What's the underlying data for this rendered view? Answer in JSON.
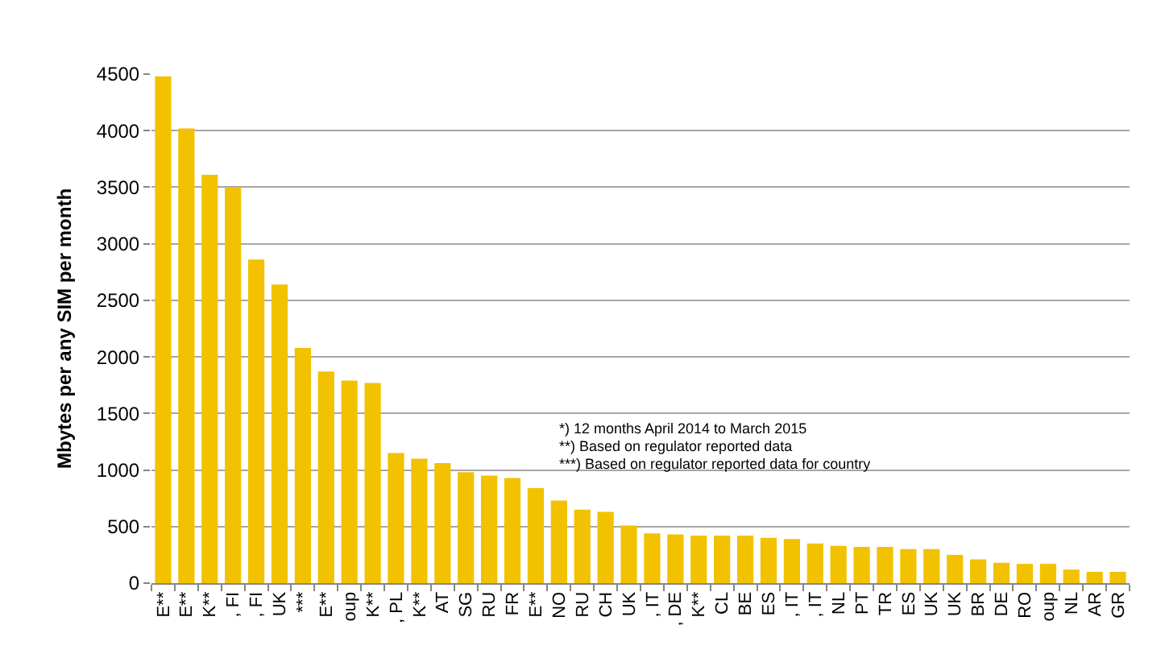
{
  "chart_data": {
    "type": "bar",
    "ylabel": "Mbytes per any SIM per month",
    "categories": [
      "E**",
      "E**",
      "K**",
      ", FI",
      ", FI",
      "UK",
      "***",
      "E**",
      "oup",
      "K**",
      ", PL",
      "K**",
      "AT",
      "SG",
      "RU",
      "FR",
      "E**",
      "NO",
      "RU",
      "CH",
      "UK",
      ", IT",
      ", DE",
      "K**",
      "CL",
      "BE",
      "ES",
      ", IT",
      ", IT",
      "NL",
      "PT",
      "TR",
      "ES",
      "UK",
      "UK",
      "BR",
      "DE",
      "RO",
      "oup",
      "NL",
      "AR",
      "GR"
    ],
    "values": [
      4480,
      4020,
      3610,
      3500,
      2860,
      2640,
      2080,
      1870,
      1790,
      1770,
      1150,
      1100,
      1060,
      980,
      950,
      930,
      840,
      730,
      650,
      630,
      510,
      440,
      430,
      420,
      420,
      420,
      400,
      390,
      350,
      330,
      320,
      320,
      300,
      300,
      250,
      210,
      180,
      170,
      170,
      120,
      100,
      100
    ],
    "color": "#f2c200",
    "ylim": [
      0,
      4500
    ],
    "yticks": [
      0,
      500,
      1000,
      1500,
      2000,
      2500,
      3000,
      3500,
      4000,
      4500
    ],
    "grid": "y",
    "annotations": [
      "*) 12 months April 2014 to March 2015",
      "**) Based on regulator reported data",
      "***) Based on regulator reported data for country"
    ]
  }
}
